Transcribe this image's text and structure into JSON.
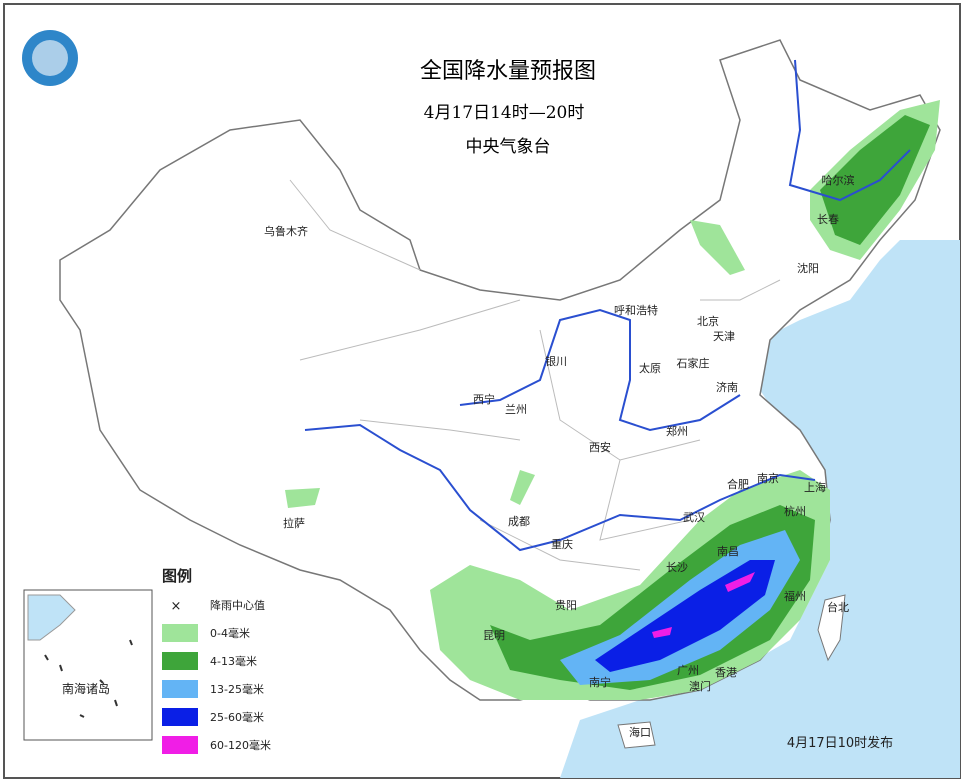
{
  "header": {
    "title": "全国降水量预报图",
    "period": "4月17日14时—20时",
    "issuer": "中央气象台"
  },
  "cities": [
    {
      "label": "乌鲁木齐"
    },
    {
      "label": "哈尔滨"
    },
    {
      "label": "长春"
    },
    {
      "label": "沈阳"
    },
    {
      "label": "呼和浩特"
    },
    {
      "label": "北京"
    },
    {
      "label": "天津"
    },
    {
      "label": "银川"
    },
    {
      "label": "石家庄"
    },
    {
      "label": "太原"
    },
    {
      "label": "济南"
    },
    {
      "label": "西宁"
    },
    {
      "label": "兰州"
    },
    {
      "label": "郑州"
    },
    {
      "label": "西安"
    },
    {
      "label": "合肥"
    },
    {
      "label": "南京"
    },
    {
      "label": "上海"
    },
    {
      "label": "拉萨"
    },
    {
      "label": "成都"
    },
    {
      "label": "武汉"
    },
    {
      "label": "杭州"
    },
    {
      "label": "重庆"
    },
    {
      "label": "长沙"
    },
    {
      "label": "南昌"
    },
    {
      "label": "贵阳"
    },
    {
      "label": "福州"
    },
    {
      "label": "台北"
    },
    {
      "label": "昆明"
    },
    {
      "label": "南宁"
    },
    {
      "label": "广州"
    },
    {
      "label": "香港"
    },
    {
      "label": "澳门"
    },
    {
      "label": "海口"
    }
  ],
  "legend": {
    "title": "图例",
    "items": [
      {
        "label": "降雨中心值"
      },
      {
        "label": "0-4毫米",
        "color": "#9fe49a"
      },
      {
        "label": "4-13毫米",
        "color": "#3ea53a"
      },
      {
        "label": "13-25毫米",
        "color": "#63b4f5"
      },
      {
        "label": "25-60毫米",
        "color": "#0a1fe6"
      },
      {
        "label": "60-120毫米",
        "color": "#f01ee6"
      }
    ]
  },
  "inset": {
    "label": "南海诸岛"
  },
  "footer": {
    "issued": "4月17日10时发布"
  }
}
